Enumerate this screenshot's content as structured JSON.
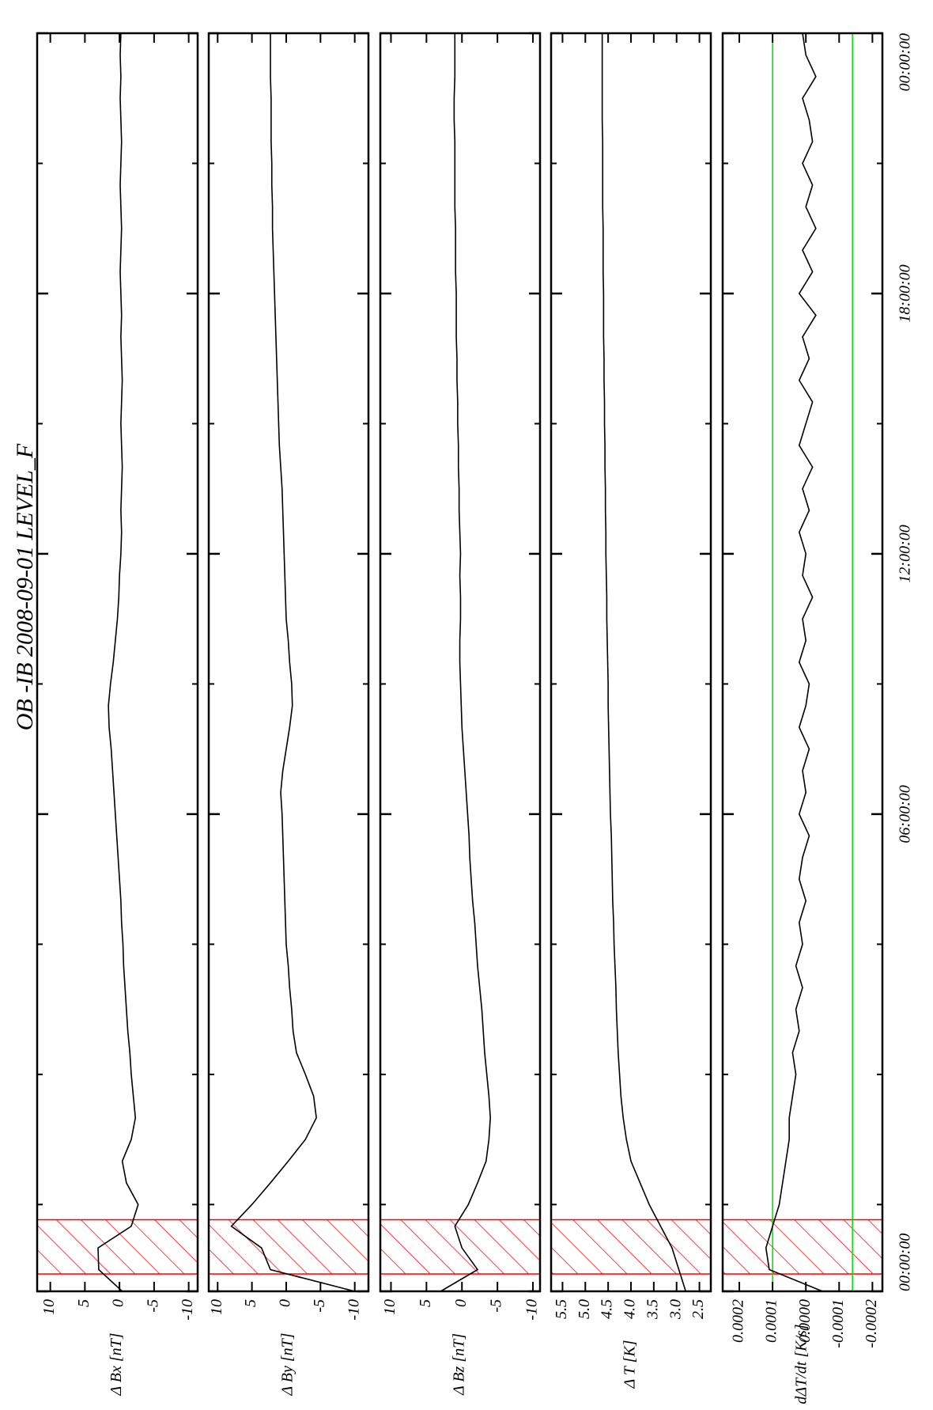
{
  "chart_data": {
    "type": "line",
    "title": "OB -IB  2008-09-01 LEVEL_F",
    "line_color": "#000000",
    "x": [
      -5,
      -4.5,
      -4,
      -3.5,
      -3,
      -2.5,
      -2,
      -1.5,
      -1,
      -0.5,
      0,
      0.5,
      1,
      1.5,
      2,
      2.5,
      3,
      3.5,
      4,
      4.5,
      5,
      5.5,
      6,
      6.5,
      7,
      7.5,
      8,
      8.5,
      9,
      9.5,
      10,
      10.5,
      11,
      11.5,
      12,
      12.5,
      13,
      13.5,
      14,
      14.5,
      15,
      15.5,
      16,
      16.5,
      17,
      17.5,
      18,
      18.5,
      19,
      19.5,
      20,
      20.5,
      21,
      21.5,
      22,
      22.5,
      23,
      23.5,
      24
    ],
    "xlim": [
      -5,
      24
    ],
    "xticks": [
      {
        "value": -5,
        "label": "00:00:00"
      },
      {
        "value": 6,
        "label": "06:00:00"
      },
      {
        "value": 12,
        "label": "12:00:00"
      },
      {
        "value": 18,
        "label": "18:00:00"
      },
      {
        "value": 24,
        "label": "00:00:00"
      }
    ],
    "xminorticks": [
      -3,
      0,
      3,
      9,
      15,
      21
    ],
    "highlight": [
      -4.6,
      -3.35
    ],
    "highlight_color": "#ff0000",
    "panels": [
      {
        "ylabel": "Δ Bx [nT]",
        "ylim": [
          -11.3,
          11.9
        ],
        "yticks": [
          10,
          5,
          0,
          -5,
          -10
        ],
        "values": [
          -0.4,
          3.0,
          3.1,
          -1.7,
          -2.7,
          -1.0,
          -0.4,
          -1.7,
          -2.3,
          -2.0,
          -1.7,
          -1.5,
          -1.2,
          -1.0,
          -0.8,
          -0.6,
          -0.5,
          -0.3,
          -0.2,
          0.0,
          0.2,
          0.4,
          0.6,
          0.8,
          1.0,
          1.2,
          1.5,
          1.6,
          1.3,
          0.9,
          0.6,
          0.3,
          0.1,
          0.0,
          -0.2,
          -0.3,
          -0.2,
          -0.3,
          -0.4,
          -0.3,
          -0.2,
          -0.3,
          -0.4,
          -0.3,
          -0.2,
          -0.3,
          -0.2,
          -0.1,
          -0.2,
          -0.3,
          -0.2,
          -0.1,
          -0.2,
          -0.3,
          -0.2,
          -0.1,
          -0.2,
          -0.1,
          -0.2
        ]
      },
      {
        "ylabel": "Δ By [nT]",
        "ylim": [
          -12,
          11.3
        ],
        "yticks": [
          10,
          5,
          0,
          -5,
          -10
        ],
        "values": [
          -10.0,
          2.3,
          3.6,
          8.0,
          5.0,
          2.3,
          -0.3,
          -2.8,
          -4.4,
          -4.0,
          -2.8,
          -1.5,
          -1.0,
          -0.8,
          -0.5,
          -0.3,
          0.0,
          0.1,
          0.2,
          0.3,
          0.4,
          0.5,
          0.6,
          0.8,
          0.5,
          0.0,
          -0.5,
          -0.9,
          -0.8,
          -0.5,
          -0.3,
          0.0,
          0.1,
          0.2,
          0.3,
          0.4,
          0.5,
          0.6,
          0.8,
          1.0,
          1.1,
          1.2,
          1.3,
          1.4,
          1.5,
          1.6,
          1.7,
          1.8,
          1.9,
          2.0,
          2.0,
          2.1,
          2.1,
          2.2,
          2.2,
          2.2,
          2.3,
          2.3,
          2.3
        ]
      },
      {
        "ylabel": "Δ Bz [nT]",
        "ylim": [
          -11,
          11.5
        ],
        "yticks": [
          10,
          5,
          0,
          -5,
          -10
        ],
        "values": [
          3.0,
          -2.2,
          0.0,
          1.0,
          -0.9,
          -2.2,
          -3.4,
          -3.8,
          -4.0,
          -3.8,
          -3.5,
          -3.2,
          -3.0,
          -2.8,
          -2.5,
          -2.2,
          -2.0,
          -1.8,
          -1.5,
          -1.3,
          -1.1,
          -1.0,
          -0.8,
          -0.6,
          -0.4,
          -0.2,
          0.0,
          0.1,
          0.2,
          0.3,
          0.3,
          0.2,
          0.2,
          0.3,
          0.2,
          0.3,
          0.4,
          0.4,
          0.5,
          0.5,
          0.6,
          0.6,
          0.7,
          0.7,
          0.8,
          0.8,
          0.8,
          0.9,
          0.9,
          0.9,
          1.0,
          1.0,
          1.0,
          1.0,
          1.1,
          1.1,
          1.0,
          1.0,
          1.0
        ]
      },
      {
        "ylabel": "Δ T [K]",
        "ylim": [
          2.25,
          5.75
        ],
        "yticks": [
          5.5,
          {
            "value": 5,
            "label": "5.0"
          },
          4.5,
          {
            "value": 4,
            "label": "4.0"
          },
          3.5,
          {
            "value": 3,
            "label": "3.0"
          },
          2.5
        ],
        "values": [
          2.8,
          2.95,
          3.1,
          3.35,
          3.6,
          3.8,
          4.0,
          4.1,
          4.17,
          4.22,
          4.25,
          4.28,
          4.3,
          4.32,
          4.33,
          4.35,
          4.37,
          4.38,
          4.4,
          4.41,
          4.42,
          4.43,
          4.45,
          4.46,
          4.47,
          4.48,
          4.49,
          4.5,
          4.5,
          4.51,
          4.52,
          4.53,
          4.53,
          4.54,
          4.55,
          4.55,
          4.56,
          4.56,
          4.57,
          4.57,
          4.58,
          4.58,
          4.59,
          4.59,
          4.6,
          4.6,
          4.6,
          4.61,
          4.61,
          4.61,
          4.62,
          4.62,
          4.62,
          4.62,
          4.63,
          4.63,
          4.63,
          4.63,
          4.63
        ]
      },
      {
        "ylabel": "dΔT/dt [K/s]",
        "ylim": [
          -0.00023,
          0.00025
        ],
        "yticks": [
          0.0002,
          0.0001,
          {
            "value": 0,
            "label": "0.0000"
          },
          -0.0001,
          -0.0002
        ],
        "hlines": [
          0.0001,
          -0.00014
        ],
        "hline_color": "#00dd00",
        "values": [
          -5e-05,
          0.00011,
          0.00012,
          0.0001,
          8e-05,
          7e-05,
          6e-05,
          5e-05,
          5e-05,
          4e-05,
          3e-05,
          4e-05,
          2e-05,
          3e-05,
          1e-05,
          3e-05,
          1e-05,
          2e-05,
          0,
          2e-05,
          1e-05,
          -1e-05,
          2e-05,
          0,
          1e-05,
          -1e-05,
          2e-05,
          0,
          -1e-05,
          2e-05,
          0,
          1e-05,
          -2e-05,
          1e-05,
          0,
          2e-05,
          -1e-05,
          1e-05,
          -2e-05,
          2e-05,
          0,
          -2e-05,
          2e-05,
          -1e-05,
          1e-05,
          -3e-05,
          2e-05,
          -2e-05,
          1e-05,
          -3e-05,
          0,
          -2e-05,
          1e-05,
          -2e-05,
          -1e-05,
          1e-05,
          -3e-05,
          0,
          1e-05
        ]
      }
    ]
  }
}
